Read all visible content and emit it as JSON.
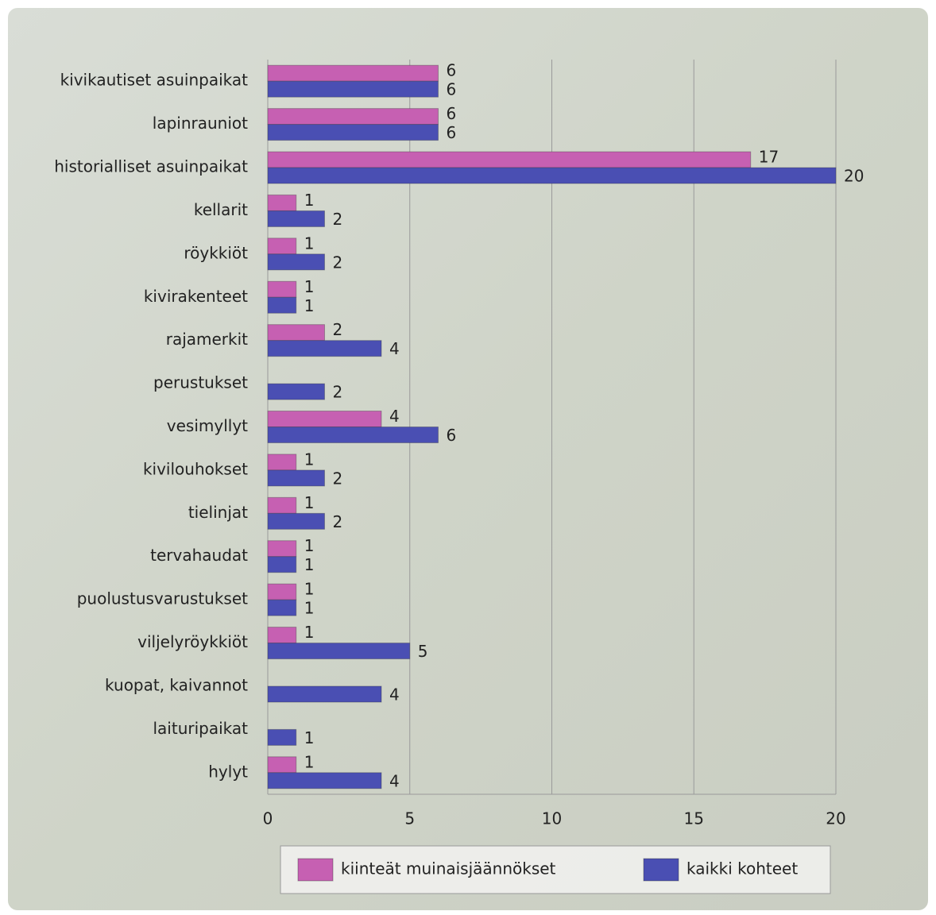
{
  "chart_data": {
    "type": "bar",
    "orientation": "horizontal",
    "categories": [
      "kivikautiset asuinpaikat",
      "lapinrauniot",
      "historialliset asuinpaikat",
      "kellarit",
      "röykkiöt",
      "kivirakenteet",
      "rajamerkit",
      "perustukset",
      "vesimyllyt",
      "kivilouhokset",
      "tielinjat",
      "tervahaudat",
      "puolustusvarustukset",
      "viljelyröykkiöt",
      "kuopat, kaivannot",
      "laituripaikat",
      "hylyt"
    ],
    "series": [
      {
        "name": "kiinteät muinaisjäännökset",
        "color": "#c660b2",
        "values": [
          6,
          6,
          17,
          1,
          1,
          1,
          2,
          null,
          4,
          1,
          1,
          1,
          1,
          1,
          null,
          null,
          1
        ]
      },
      {
        "name": "kaikki kohteet",
        "color": "#4a4fb3",
        "values": [
          6,
          6,
          20,
          2,
          2,
          1,
          4,
          2,
          6,
          2,
          2,
          1,
          1,
          5,
          4,
          1,
          4
        ]
      }
    ],
    "xlim": [
      0,
      20
    ],
    "xticks": [
      0,
      5,
      10,
      15,
      20
    ],
    "grid": true,
    "legend": "bottom"
  }
}
